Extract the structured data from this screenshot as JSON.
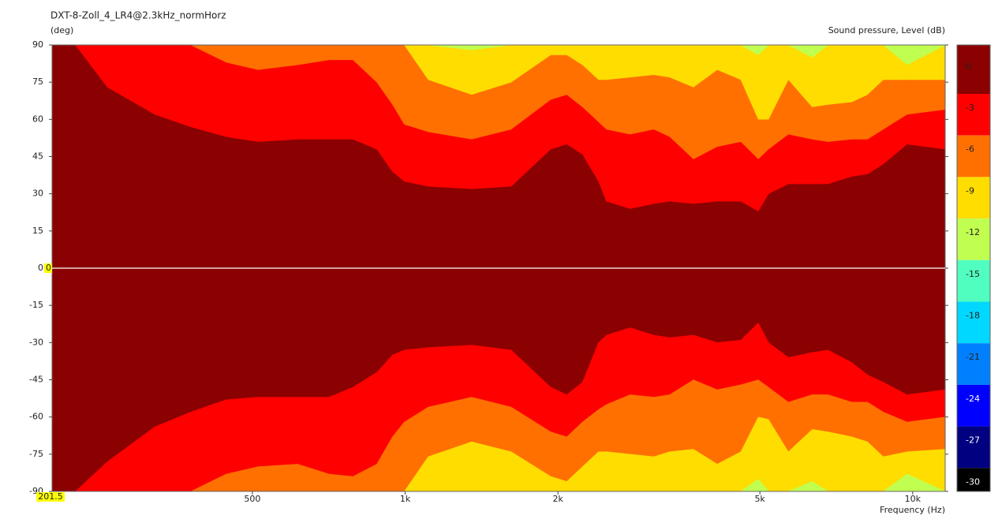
{
  "chart_data": {
    "type": "contour",
    "title": "DXT-8-Zoll_4_LR4@2.3kHz_normHorz",
    "y_label": "(deg)",
    "colorbar_label": "Sound pressure, Level  (dB)",
    "x_label": "Frequency  (Hz)",
    "x_log": true,
    "xlim": [
      201.5,
      11590
    ],
    "xticks": [
      500,
      {
        "value": 1000,
        "label": "1k"
      },
      {
        "value": 2000,
        "label": "2k"
      },
      {
        "value": 5000,
        "label": "5k"
      },
      {
        "value": 10000,
        "label": "10k"
      }
    ],
    "ylim": [
      -90,
      90
    ],
    "yticks": [
      90,
      75,
      60,
      45,
      30,
      15,
      0,
      -15,
      -30,
      -45,
      -60,
      -75,
      -90
    ],
    "cursor": {
      "x": 201.5,
      "y": 0
    },
    "levels": [
      {
        "value": 0,
        "color": "#8b0000"
      },
      {
        "value": -3,
        "color": "#ff0000"
      },
      {
        "value": -6,
        "color": "#ff7000"
      },
      {
        "value": -9,
        "color": "#ffdd00"
      },
      {
        "value": -12,
        "color": "#c0ff50"
      },
      {
        "value": -15,
        "color": "#50ffc0"
      },
      {
        "value": -18,
        "color": "#00d8ff"
      },
      {
        "value": -21,
        "color": "#0080ff"
      },
      {
        "value": -24,
        "color": "#0000ff"
      },
      {
        "value": -27,
        "color": "#000080"
      },
      {
        "value": -30,
        "color": "#000000"
      }
    ],
    "x": [
      201.5,
      224,
      259,
      321,
      378,
      444,
      513,
      614,
      708,
      789,
      879,
      944,
      996,
      1110,
      1352,
      1618,
      1936,
      2081,
      2235,
      2404,
      2491,
      2773,
      3090,
      3320,
      3698,
      4120,
      4585,
      4963,
      5200,
      5689,
      6339,
      6808,
      7586,
      8150,
      8755,
      9750,
      11590
    ],
    "contours": [
      {
        "level": -3,
        "color": "#ff0000",
        "upper": [
          90,
          90,
          73,
          62,
          57,
          53,
          51,
          52,
          52,
          52,
          48,
          39,
          35,
          33,
          32,
          33,
          48,
          50,
          46,
          35,
          27,
          24,
          26,
          27,
          26,
          27,
          27,
          23,
          30,
          34,
          34,
          34,
          37,
          38,
          42,
          50,
          48
        ],
        "lower": [
          -90,
          -90,
          -78,
          -64,
          -58,
          -53,
          -52,
          -52,
          -52,
          -48,
          -42,
          -35,
          -33,
          -32,
          -31,
          -33,
          -48,
          -51,
          -46,
          -30,
          -27,
          -24,
          -27,
          -28,
          -27,
          -30,
          -29,
          -22,
          -30,
          -36,
          -34,
          -33,
          -38,
          -43,
          -46,
          -51,
          -49
        ]
      },
      {
        "level": -6,
        "color": "#ff7000",
        "upper": [
          90,
          90,
          90,
          90,
          90,
          83,
          80,
          82,
          84,
          84,
          75,
          66,
          58,
          55,
          52,
          56,
          68,
          70,
          65,
          59,
          56,
          54,
          56,
          53,
          44,
          49,
          51,
          44,
          48,
          54,
          52,
          51,
          52,
          52,
          56,
          62,
          64
        ],
        "lower": [
          -90,
          -90,
          -90,
          -90,
          -90,
          -83,
          -80,
          -79,
          -83,
          -84,
          -79,
          -68,
          -62,
          -56,
          -52,
          -56,
          -66,
          -68,
          -62,
          -57,
          -55,
          -51,
          -52,
          -51,
          -45,
          -49,
          -47,
          -45,
          -48,
          -54,
          -51,
          -51,
          -54,
          -54,
          -58,
          -62,
          -60
        ]
      },
      {
        "level": -9,
        "color": "#ffdd00",
        "upper": [
          90,
          90,
          90,
          90,
          90,
          90,
          90,
          90,
          90,
          90,
          90,
          90,
          90,
          76,
          70,
          75,
          86,
          86,
          82,
          76,
          76,
          77,
          78,
          77,
          73,
          80,
          76,
          60,
          60,
          76,
          65,
          66,
          67,
          70,
          76,
          76,
          76
        ],
        "lower": [
          -90,
          -90,
          -90,
          -90,
          -90,
          -90,
          -90,
          -90,
          -90,
          -90,
          -90,
          -90,
          -90,
          -76,
          -70,
          -74,
          -84,
          -86,
          -80,
          -74,
          -74,
          -75,
          -76,
          -74,
          -73,
          -79,
          -74,
          -60,
          -61,
          -74,
          -65,
          -66,
          -68,
          -70,
          -76,
          -74,
          -73
        ]
      },
      {
        "level": -12,
        "color": "#c0ff50",
        "upper": [
          90,
          90,
          90,
          90,
          90,
          90,
          90,
          90,
          90,
          90,
          90,
          90,
          90,
          90,
          88,
          90,
          90,
          90,
          90,
          90,
          90,
          90,
          90,
          90,
          90,
          90,
          90,
          86,
          90,
          90,
          85,
          90,
          90,
          90,
          90,
          82,
          90
        ],
        "lower": [
          -90,
          -90,
          -90,
          -90,
          -90,
          -90,
          -90,
          -90,
          -90,
          -90,
          -90,
          -90,
          -90,
          -90,
          -90,
          -90,
          -90,
          -90,
          -90,
          -90,
          -90,
          -90,
          -90,
          -90,
          -90,
          -90,
          -90,
          -85,
          -90,
          -90,
          -86,
          -90,
          -90,
          -90,
          -90,
          -83,
          -90
        ]
      }
    ]
  }
}
